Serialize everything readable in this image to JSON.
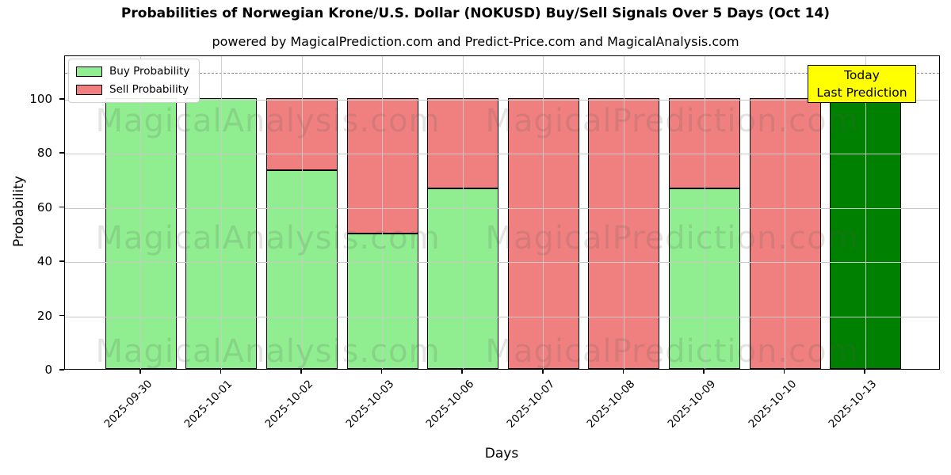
{
  "figure": {
    "title": "Probabilities of Norwegian Krone/U.S. Dollar (NOKUSD) Buy/Sell Signals Over 5 Days (Oct 14)",
    "subtitle": "powered by MagicalPrediction.com and Predict-Price.com and MagicalAnalysis.com"
  },
  "legend": {
    "items": [
      {
        "label": "Buy Probability",
        "color": "#90ee90"
      },
      {
        "label": "Sell Probability",
        "color": "#f08080"
      }
    ]
  },
  "annotation": {
    "line1": "Today",
    "line2": "Last Prediction",
    "bg_color": "#ffff00",
    "border_color": "#000000"
  },
  "watermarks": {
    "left": "MagicalAnalysis.com",
    "right": "MagicalPrediction.com"
  },
  "colors": {
    "buy": "#90ee90",
    "sell": "#f08080",
    "today_bar": "#008000",
    "bar_edge": "#000000",
    "grid": "#c9c9c9",
    "dashed_line": "#8a8a8a",
    "background": "#ffffff"
  },
  "chart_data": {
    "type": "bar",
    "stacked": true,
    "title": "Probabilities of Norwegian Krone/U.S. Dollar (NOKUSD) Buy/Sell Signals Over 5 Days (Oct 14)",
    "subtitle": "powered by MagicalPrediction.com and Predict-Price.com and MagicalAnalysis.com",
    "xlabel": "Days",
    "ylabel": "Probability",
    "categories": [
      "2025-09-30",
      "2025-10-01",
      "2025-10-02",
      "2025-10-03",
      "2025-10-06",
      "2025-10-07",
      "2025-10-08",
      "2025-10-09",
      "2025-10-10",
      "2025-10-13"
    ],
    "series": [
      {
        "name": "Buy Probability",
        "color": "#90ee90",
        "values": [
          100,
          100,
          73.3,
          50,
          66.7,
          0,
          0,
          66.7,
          0,
          100
        ]
      },
      {
        "name": "Sell Probability",
        "color": "#f08080",
        "values": [
          0,
          0,
          26.7,
          50,
          33.3,
          100,
          100,
          33.3,
          100,
          0
        ]
      }
    ],
    "today_bar": {
      "index": 9,
      "color": "#008000",
      "label": "Today Last Prediction"
    },
    "yticks": [
      0,
      20,
      40,
      60,
      80,
      100
    ],
    "ylim": [
      0,
      116
    ],
    "dashed_line_y": 110,
    "grid": true,
    "legend_position": "upper left"
  }
}
